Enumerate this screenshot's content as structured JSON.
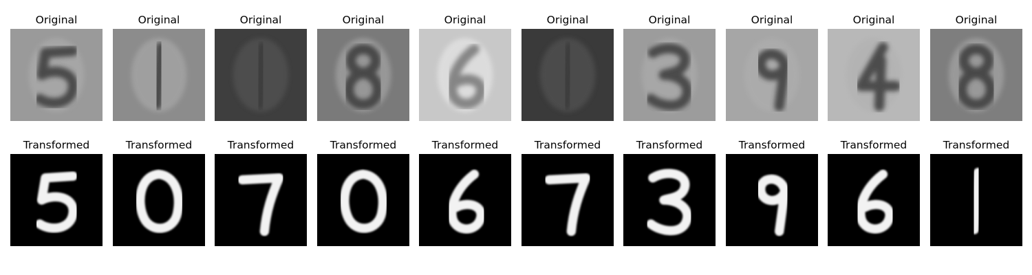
{
  "rows": [
    {
      "name": "original",
      "title": "Original",
      "digits": [
        "5",
        "1",
        "1",
        "8",
        "6",
        "1",
        "3",
        "9",
        "4",
        "8"
      ]
    },
    {
      "name": "transformed",
      "title": "Transformed",
      "digits": [
        "5",
        "0",
        "7",
        "0",
        "6",
        "7",
        "3",
        "9",
        "6",
        "1"
      ]
    }
  ]
}
